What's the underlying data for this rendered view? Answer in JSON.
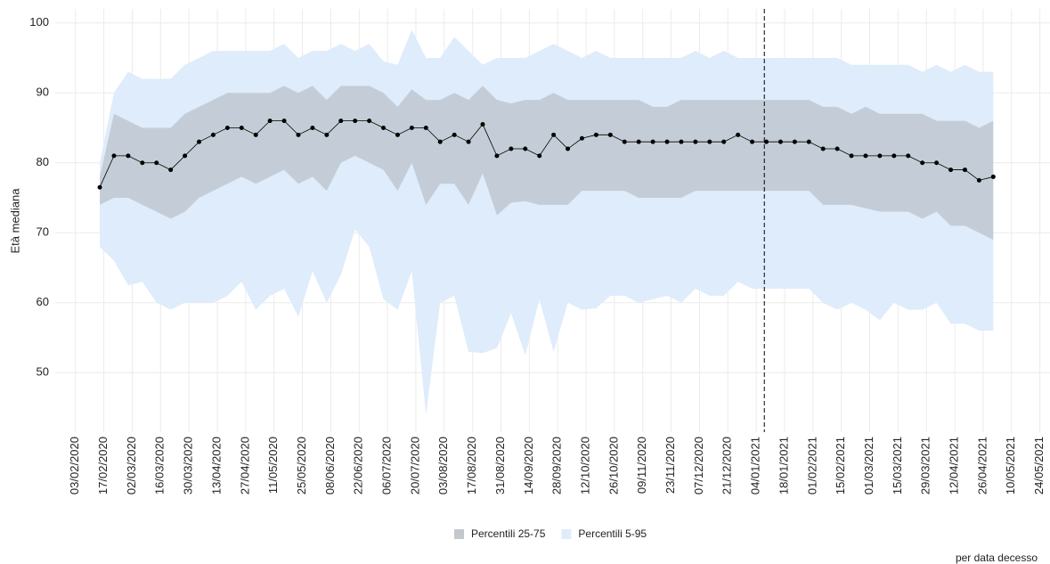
{
  "chart_data": {
    "type": "ribbon-line",
    "y_label": "Età mediana",
    "caption": "per data decesso",
    "x": [
      "15/02/2020",
      "22/02/2020",
      "29/02/2020",
      "07/03/2020",
      "14/03/2020",
      "21/03/2020",
      "28/03/2020",
      "04/04/2020",
      "11/04/2020",
      "18/04/2020",
      "25/04/2020",
      "02/05/2020",
      "09/05/2020",
      "16/05/2020",
      "23/05/2020",
      "30/05/2020",
      "06/06/2020",
      "13/06/2020",
      "20/06/2020",
      "27/06/2020",
      "04/07/2020",
      "11/07/2020",
      "18/07/2020",
      "25/07/2020",
      "01/08/2020",
      "08/08/2020",
      "15/08/2020",
      "22/08/2020",
      "29/08/2020",
      "05/09/2020",
      "12/09/2020",
      "19/09/2020",
      "26/09/2020",
      "03/10/2020",
      "10/10/2020",
      "17/10/2020",
      "24/10/2020",
      "31/10/2020",
      "07/11/2020",
      "14/11/2020",
      "21/11/2020",
      "28/11/2020",
      "05/12/2020",
      "12/12/2020",
      "19/12/2020",
      "26/12/2020",
      "02/01/2021",
      "09/01/2021",
      "16/01/2021",
      "23/01/2021",
      "30/01/2021",
      "06/02/2021",
      "13/02/2021",
      "20/02/2021",
      "27/02/2021",
      "06/03/2021",
      "13/03/2021",
      "20/03/2021",
      "27/03/2021",
      "03/04/2021",
      "10/04/2021",
      "17/04/2021",
      "24/04/2021",
      "01/05/2021"
    ],
    "median": {
      "color": "#000000",
      "values": [
        76.5,
        81,
        81,
        80,
        80,
        79,
        81,
        83,
        84,
        85,
        85,
        84,
        86,
        86,
        84,
        85,
        84,
        86,
        86,
        86,
        85,
        84,
        85,
        85,
        83,
        84,
        83,
        85.5,
        81,
        82,
        82,
        81,
        84,
        82,
        83.5,
        84,
        84,
        83,
        83,
        83,
        83,
        83,
        83,
        83,
        83,
        84,
        83,
        83,
        83,
        83,
        83,
        82,
        82,
        81,
        81,
        81,
        81,
        81,
        80,
        80,
        79,
        79,
        77.5,
        78
      ]
    },
    "bands": [
      {
        "name": "Percentili 25-75",
        "color": "rgba(150,150,150,0.35)",
        "upper": [
          78,
          87,
          86,
          85,
          85,
          85,
          87,
          88,
          89,
          90,
          90,
          90,
          90,
          91,
          90,
          91,
          89,
          91,
          91,
          91,
          90,
          88,
          90.5,
          89,
          89,
          90,
          89,
          91,
          89,
          88.5,
          89,
          89,
          90,
          89,
          89,
          89,
          89,
          89,
          89,
          88,
          88,
          89,
          89,
          89,
          89,
          89,
          89,
          89,
          89,
          89,
          89,
          88,
          88,
          87,
          88,
          87,
          87,
          87,
          87,
          86,
          86,
          86,
          85,
          86
        ],
        "lower": [
          74,
          75,
          75,
          74,
          73,
          72,
          73,
          75,
          76,
          77,
          78,
          77,
          78,
          79,
          77,
          78,
          76,
          80,
          81,
          80,
          79,
          76,
          80,
          74,
          77,
          77,
          74,
          78.5,
          72.5,
          74.3,
          74.5,
          74,
          74,
          74,
          76,
          76,
          76,
          76,
          75,
          75,
          75,
          75,
          76,
          76,
          76,
          76,
          76,
          76,
          76,
          76,
          76,
          74,
          74,
          74,
          73.5,
          73,
          73,
          73,
          72,
          73,
          71,
          71,
          70,
          69
        ]
      },
      {
        "name": "Percentili 5-95",
        "color": "#deecfb",
        "upper": [
          80,
          90,
          93,
          92,
          92,
          92,
          94,
          95,
          96,
          96,
          96,
          96,
          96,
          97,
          95,
          96,
          96,
          97,
          96,
          97,
          94.5,
          94,
          99,
          95,
          95,
          98,
          96,
          94,
          95,
          95,
          95,
          96,
          97,
          96,
          95,
          96,
          95,
          95,
          95,
          95,
          95,
          95,
          96,
          95,
          96,
          95,
          95,
          95,
          95,
          95,
          95,
          95,
          95,
          94,
          94,
          94,
          94,
          94,
          93,
          94,
          93,
          94,
          93,
          93
        ],
        "lower": [
          68,
          66,
          62.5,
          63,
          60,
          59,
          60,
          60,
          60,
          61,
          63,
          59,
          61,
          62,
          58,
          64.5,
          60,
          64,
          70.5,
          68,
          60.5,
          59,
          64.5,
          44,
          60,
          61,
          53,
          52.8,
          53.5,
          58.5,
          52.5,
          60.5,
          53,
          60,
          59,
          59.2,
          61,
          61,
          60,
          60.5,
          61,
          60,
          62,
          61,
          61,
          63,
          62,
          62,
          62,
          62,
          62,
          60,
          59,
          60,
          59,
          57.5,
          60,
          59,
          59,
          60,
          57,
          57,
          56,
          56
        ]
      }
    ],
    "vline": "08/01/2021",
    "xlim": [
      "24/01/2020",
      "29/05/2021"
    ],
    "xticks": [
      "03/02/2020",
      "17/02/2020",
      "02/03/2020",
      "16/03/2020",
      "30/03/2020",
      "13/04/2020",
      "27/04/2020",
      "11/05/2020",
      "25/05/2020",
      "08/06/2020",
      "22/06/2020",
      "06/07/2020",
      "20/07/2020",
      "03/08/2020",
      "17/08/2020",
      "31/08/2020",
      "14/09/2020",
      "28/09/2020",
      "12/10/2020",
      "26/10/2020",
      "09/11/2020",
      "23/11/2020",
      "07/12/2020",
      "21/12/2020",
      "04/01/2021",
      "18/01/2021",
      "01/02/2021",
      "15/02/2021",
      "01/03/2021",
      "15/03/2021",
      "29/03/2021",
      "12/04/2021",
      "26/04/2021",
      "10/05/2021",
      "24/05/2021"
    ],
    "ylim": [
      41.5,
      102
    ],
    "yticks": [
      50,
      60,
      70,
      80,
      90,
      100
    ],
    "grid": true
  }
}
